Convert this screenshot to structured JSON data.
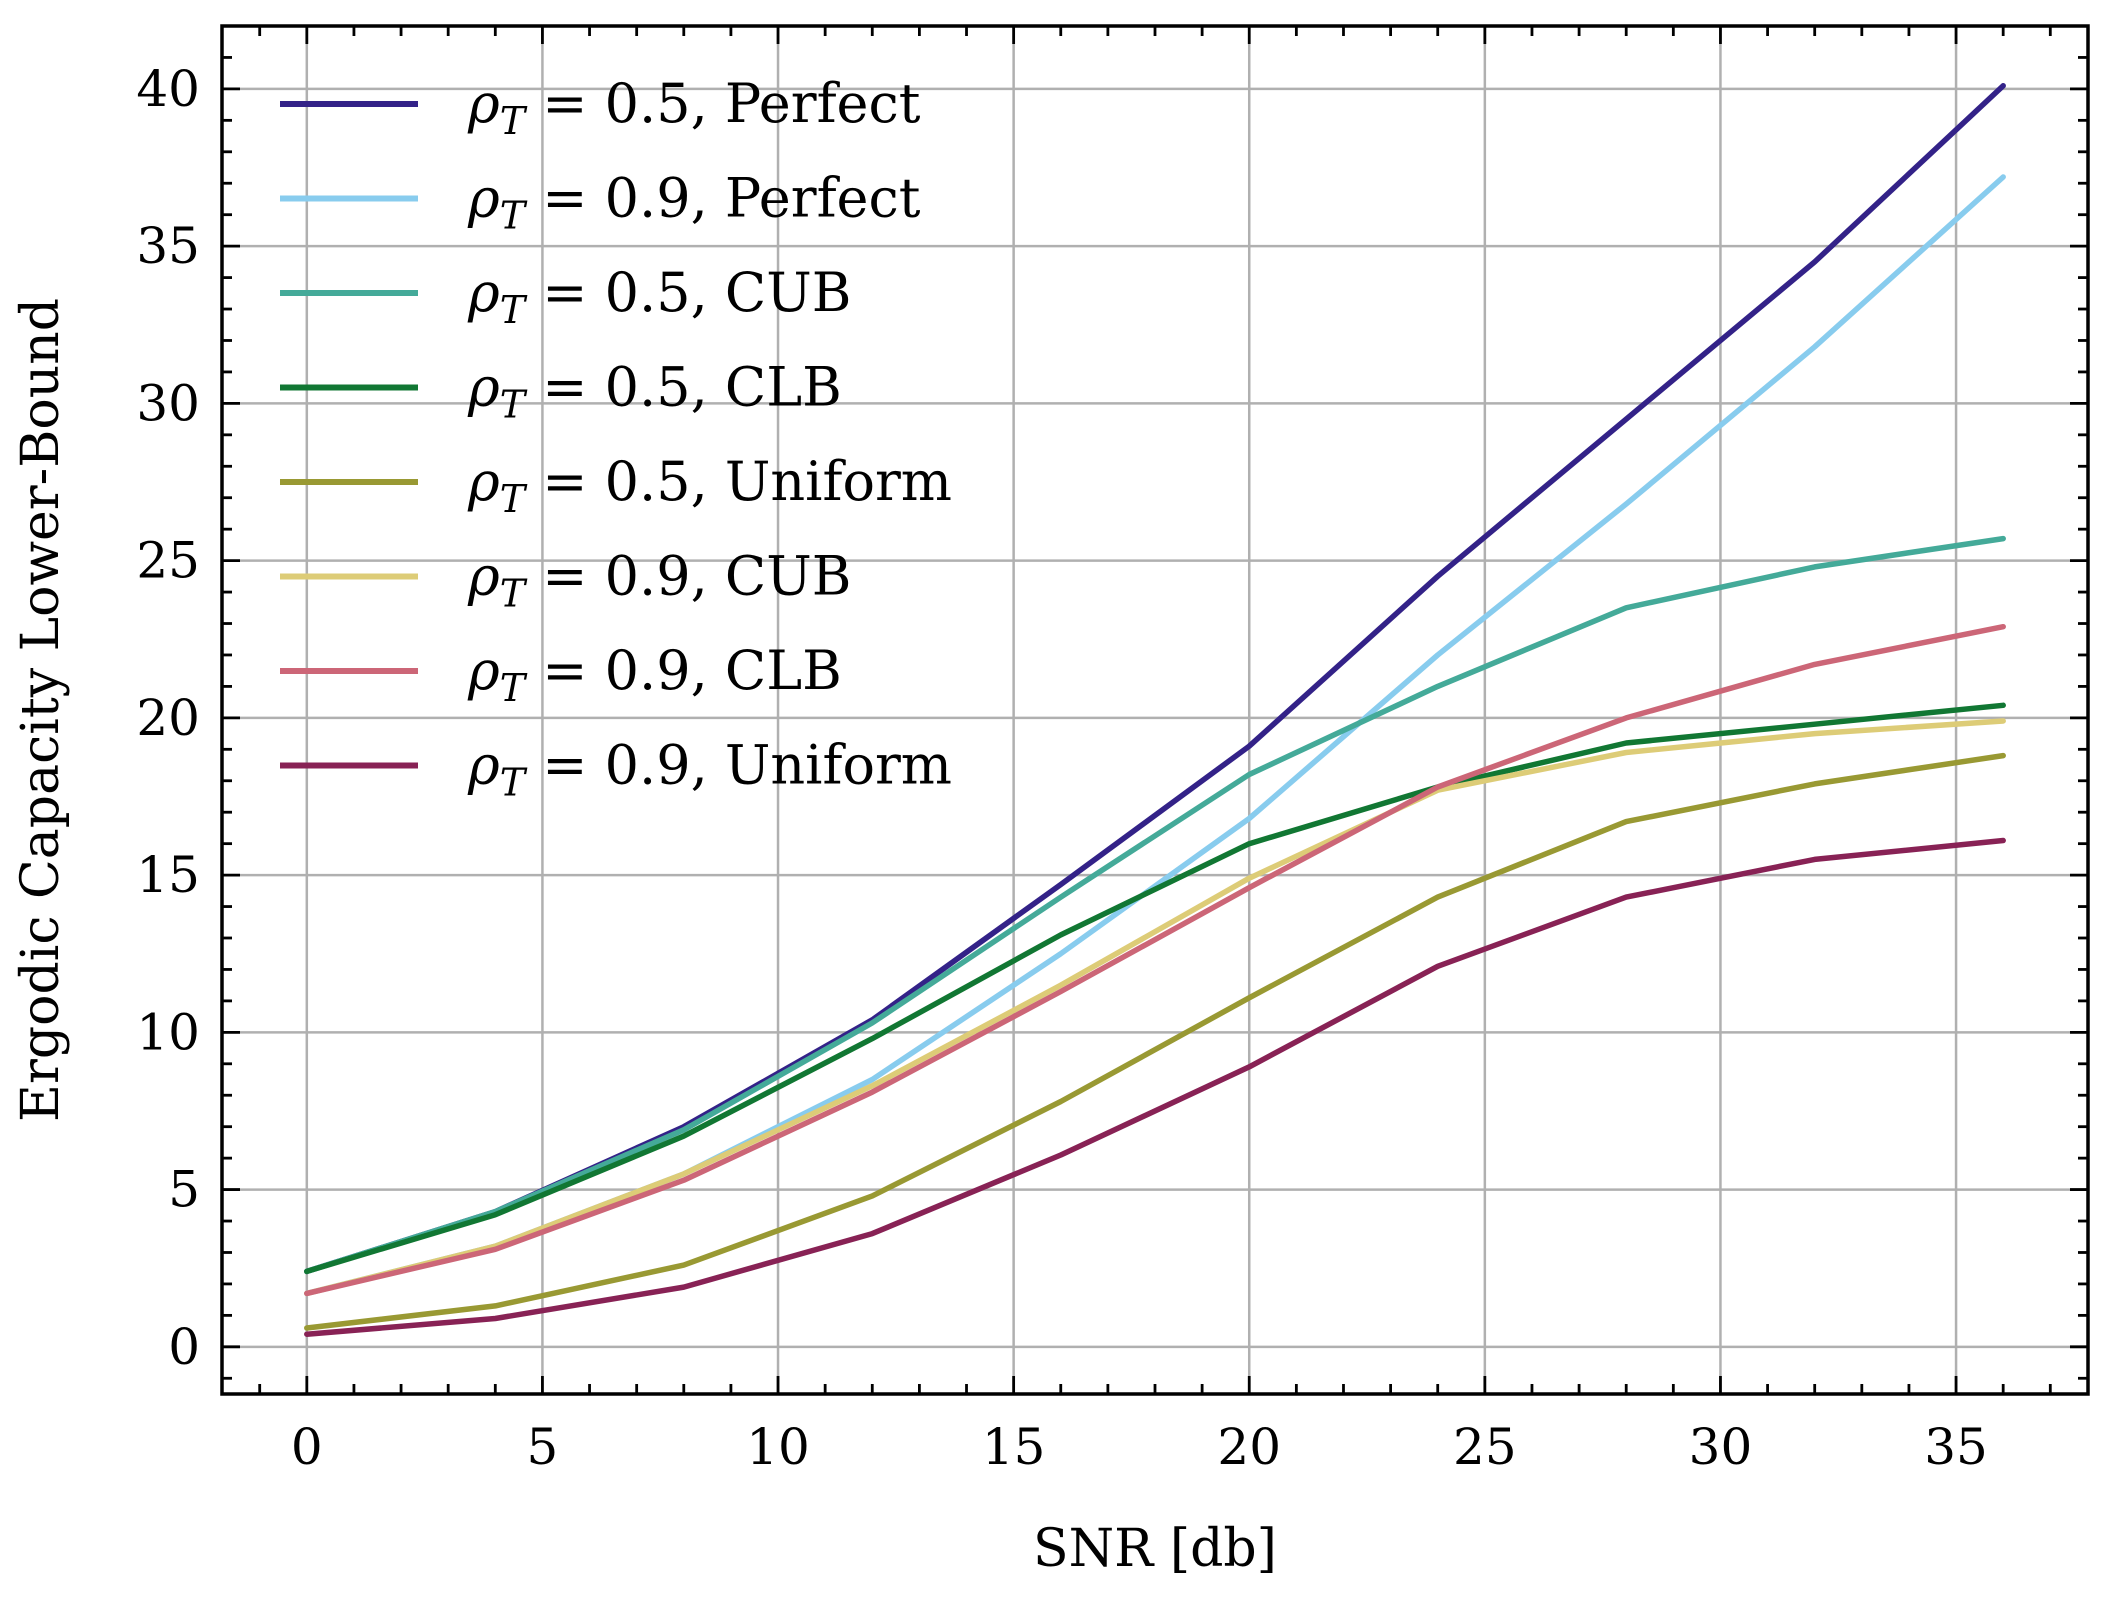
{
  "chart_data": {
    "type": "line",
    "title": "",
    "xlabel": "SNR [db]",
    "ylabel": "Ergodic Capacity Lower-Bound",
    "xlim": [
      -1.8,
      37.8
    ],
    "ylim": [
      -1.5,
      42.0
    ],
    "xticks": [
      0,
      5,
      10,
      15,
      20,
      25,
      30,
      35
    ],
    "yticks": [
      0,
      5,
      10,
      15,
      20,
      25,
      30,
      35,
      40
    ],
    "grid": true,
    "legend_position": "top-left",
    "x": [
      0,
      4,
      8,
      12,
      16,
      20,
      24,
      28,
      32,
      36
    ],
    "series": [
      {
        "name": "ρT = 0.5, Perfect",
        "color": "#332288",
        "values": [
          2.4,
          4.3,
          7.0,
          10.4,
          14.7,
          19.1,
          24.5,
          29.5,
          34.5,
          40.1
        ]
      },
      {
        "name": "ρT = 0.9, Perfect",
        "color": "#88ccee",
        "values": [
          1.7,
          3.2,
          5.5,
          8.5,
          12.5,
          16.8,
          22.0,
          26.8,
          31.8,
          37.2
        ]
      },
      {
        "name": "ρT = 0.5, CUB",
        "color": "#44aa99",
        "values": [
          2.4,
          4.3,
          6.9,
          10.3,
          14.3,
          18.2,
          21.0,
          23.5,
          24.8,
          25.7
        ]
      },
      {
        "name": "ρT = 0.5, CLB",
        "color": "#117733",
        "values": [
          2.4,
          4.2,
          6.7,
          9.8,
          13.1,
          16.0,
          17.8,
          19.2,
          19.8,
          20.4
        ]
      },
      {
        "name": "ρT = 0.5, Uniform",
        "color": "#999933",
        "values": [
          0.6,
          1.3,
          2.6,
          4.8,
          7.8,
          11.1,
          14.3,
          16.7,
          17.9,
          18.8
        ]
      },
      {
        "name": "ρT = 0.9, CUB",
        "color": "#ddcc77",
        "values": [
          1.7,
          3.2,
          5.5,
          8.3,
          11.5,
          14.9,
          17.7,
          18.9,
          19.5,
          19.9
        ]
      },
      {
        "name": "ρT = 0.9, CLB",
        "color": "#cc6677",
        "values": [
          1.7,
          3.1,
          5.3,
          8.1,
          11.3,
          14.6,
          17.8,
          20.0,
          21.7,
          22.9
        ]
      },
      {
        "name": "ρT = 0.9, Uniform",
        "color": "#882255",
        "values": [
          0.4,
          0.9,
          1.9,
          3.6,
          6.1,
          8.9,
          12.1,
          14.3,
          15.5,
          16.1
        ]
      }
    ],
    "legend_entries": [
      {
        "rho": "ρ",
        "sub": "T",
        "rest": " = 0.5, Perfect"
      },
      {
        "rho": "ρ",
        "sub": "T",
        "rest": " = 0.9, Perfect"
      },
      {
        "rho": "ρ",
        "sub": "T",
        "rest": " = 0.5, CUB"
      },
      {
        "rho": "ρ",
        "sub": "T",
        "rest": " = 0.5, CLB"
      },
      {
        "rho": "ρ",
        "sub": "T",
        "rest": " = 0.5, Uniform"
      },
      {
        "rho": "ρ",
        "sub": "T",
        "rest": " = 0.9, CUB"
      },
      {
        "rho": "ρ",
        "sub": "T",
        "rest": " = 0.9, CLB"
      },
      {
        "rho": "ρ",
        "sub": "T",
        "rest": " = 0.9, Uniform"
      }
    ],
    "grid_color": "#b0b0b0",
    "axis_color": "#000000"
  }
}
